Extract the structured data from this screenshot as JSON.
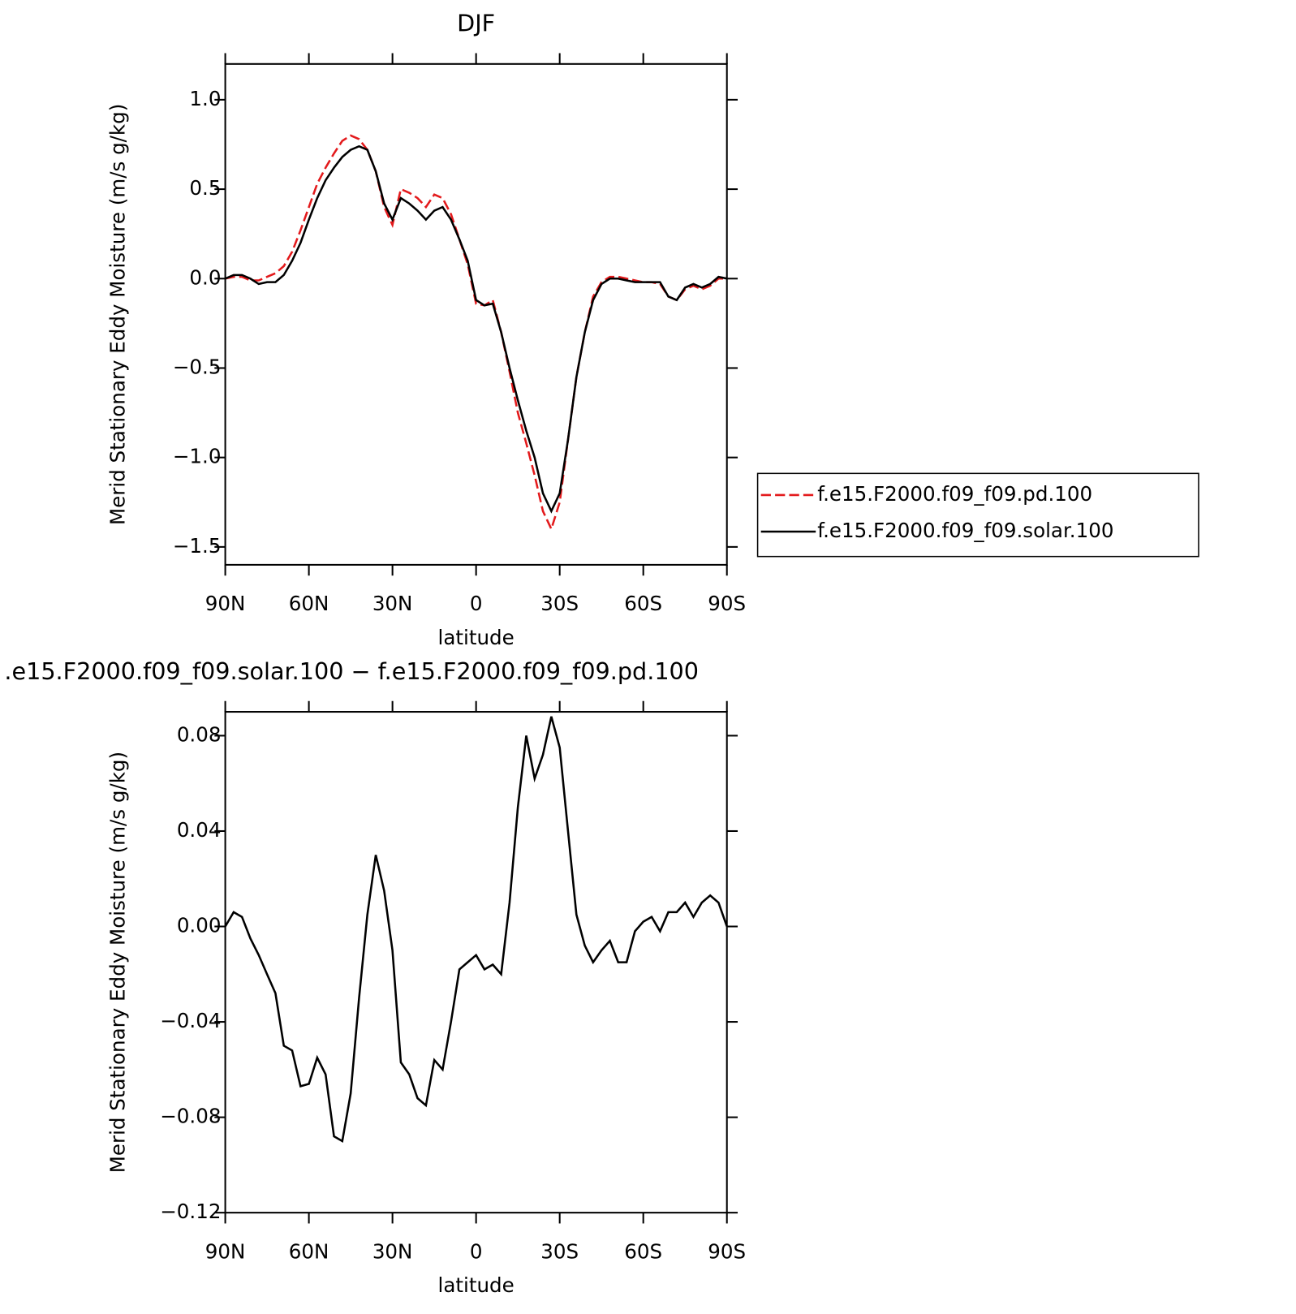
{
  "chart_data": [
    {
      "type": "line",
      "title": "DJF",
      "xlabel": "latitude",
      "ylabel": "Merid Stationary Eddy Moisture (m/s g/kg)",
      "x": [
        90,
        87,
        84,
        81,
        78,
        75,
        72,
        69,
        66,
        63,
        60,
        57,
        54,
        51,
        48,
        45,
        42,
        39,
        36,
        33,
        30,
        27,
        24,
        21,
        18,
        15,
        12,
        9,
        6,
        3,
        0,
        -3,
        -6,
        -9,
        -12,
        -15,
        -18,
        -21,
        -24,
        -27,
        -30,
        -33,
        -36,
        -39,
        -42,
        -45,
        -48,
        -51,
        -54,
        -57,
        -60,
        -63,
        -66,
        -69,
        -72,
        -75,
        -78,
        -81,
        -84,
        -87,
        -90
      ],
      "series": [
        {
          "name": "f.e15.F2000.f09_f09.pd.100",
          "color": "#e31a1c",
          "style": "dashed",
          "values": [
            0.0,
            0.01,
            0.01,
            -0.01,
            -0.01,
            0.01,
            0.03,
            0.07,
            0.15,
            0.27,
            0.4,
            0.53,
            0.62,
            0.7,
            0.77,
            0.8,
            0.78,
            0.72,
            0.6,
            0.4,
            0.3,
            0.5,
            0.48,
            0.45,
            0.4,
            0.47,
            0.45,
            0.36,
            0.22,
            0.08,
            -0.14,
            -0.15,
            -0.12,
            -0.3,
            -0.52,
            -0.75,
            -0.92,
            -1.1,
            -1.3,
            -1.4,
            -1.25,
            -0.9,
            -0.55,
            -0.3,
            -0.1,
            -0.02,
            0.01,
            0.01,
            0.0,
            -0.01,
            -0.02,
            -0.02,
            -0.03,
            -0.1,
            -0.12,
            -0.06,
            -0.04,
            -0.06,
            -0.04,
            0.0,
            0.0
          ]
        },
        {
          "name": "f.e15.F2000.f09_f09.solar.100",
          "color": "#000000",
          "style": "solid",
          "values": [
            0.0,
            0.02,
            0.02,
            0.0,
            -0.03,
            -0.02,
            -0.02,
            0.02,
            0.1,
            0.2,
            0.33,
            0.45,
            0.55,
            0.62,
            0.68,
            0.72,
            0.74,
            0.72,
            0.6,
            0.42,
            0.33,
            0.45,
            0.42,
            0.38,
            0.33,
            0.38,
            0.4,
            0.33,
            0.22,
            0.1,
            -0.12,
            -0.15,
            -0.14,
            -0.3,
            -0.5,
            -0.68,
            -0.85,
            -1.0,
            -1.2,
            -1.3,
            -1.2,
            -0.9,
            -0.55,
            -0.3,
            -0.12,
            -0.03,
            0.0,
            0.0,
            -0.01,
            -0.02,
            -0.02,
            -0.02,
            -0.02,
            -0.1,
            -0.12,
            -0.05,
            -0.03,
            -0.05,
            -0.03,
            0.01,
            0.0
          ]
        }
      ],
      "xlim": [
        90,
        -90
      ],
      "xticks": [
        {
          "value": 90,
          "label": "90N"
        },
        {
          "value": 60,
          "label": "60N"
        },
        {
          "value": 30,
          "label": "30N"
        },
        0,
        {
          "value": -30,
          "label": "30S"
        },
        {
          "value": -60,
          "label": "60S"
        },
        {
          "value": -90,
          "label": "90S"
        }
      ],
      "ylim": [
        -1.6,
        1.2
      ],
      "yticks": [
        {
          "value": -1.5,
          "label": "−1.5"
        },
        {
          "value": -1.0,
          "label": "−1.0"
        },
        {
          "value": -0.5,
          "label": "−0.5"
        },
        {
          "value": 0,
          "label": "0.0"
        },
        0.5,
        {
          "value": 1.0,
          "label": "1.0"
        }
      ],
      "legend": "right"
    },
    {
      "type": "line",
      "title": ".e15.F2000.f09_f09.solar.100 − f.e15.F2000.f09_f09.pd.100",
      "xlabel": "latitude",
      "ylabel": "Merid Stationary Eddy Moisture (m/s g/kg)",
      "x": [
        90,
        87,
        84,
        81,
        78,
        75,
        72,
        69,
        66,
        63,
        60,
        57,
        54,
        51,
        48,
        45,
        42,
        39,
        36,
        33,
        30,
        27,
        24,
        21,
        18,
        15,
        12,
        9,
        6,
        3,
        0,
        -3,
        -6,
        -9,
        -12,
        -15,
        -18,
        -21,
        -24,
        -27,
        -30,
        -33,
        -36,
        -39,
        -42,
        -45,
        -48,
        -51,
        -54,
        -57,
        -60,
        -63,
        -66,
        -69,
        -72,
        -75,
        -78,
        -81,
        -84,
        -87,
        -90
      ],
      "series": [
        {
          "color": "#000000",
          "style": "solid",
          "values": [
            0.0,
            0.006,
            0.004,
            -0.005,
            -0.012,
            -0.02,
            -0.028,
            -0.05,
            -0.052,
            -0.067,
            -0.066,
            -0.055,
            -0.062,
            -0.088,
            -0.09,
            -0.07,
            -0.03,
            0.005,
            0.03,
            0.015,
            -0.01,
            -0.057,
            -0.062,
            -0.072,
            -0.075,
            -0.056,
            -0.06,
            -0.04,
            -0.018,
            -0.015,
            -0.012,
            -0.018,
            -0.016,
            -0.02,
            0.01,
            0.05,
            0.08,
            0.062,
            0.072,
            0.088,
            0.075,
            0.04,
            0.005,
            -0.008,
            -0.015,
            -0.01,
            -0.006,
            -0.015,
            -0.015,
            -0.002,
            0.002,
            0.004,
            -0.002,
            0.006,
            0.006,
            0.01,
            0.004,
            0.01,
            0.013,
            0.01,
            0.0
          ]
        }
      ],
      "xlim": [
        90,
        -90
      ],
      "xticks": [
        {
          "value": 90,
          "label": "90N"
        },
        {
          "value": 60,
          "label": "60N"
        },
        {
          "value": 30,
          "label": "30N"
        },
        0,
        {
          "value": -30,
          "label": "30S"
        },
        {
          "value": -60,
          "label": "60S"
        },
        {
          "value": -90,
          "label": "90S"
        }
      ],
      "ylim": [
        -0.12,
        0.09
      ],
      "yticks": [
        {
          "value": -0.12,
          "label": "−0.12"
        },
        {
          "value": -0.08,
          "label": "−0.08"
        },
        {
          "value": -0.04,
          "label": "−0.04"
        },
        {
          "value": 0,
          "label": "0.00"
        },
        0.04,
        0.08
      ]
    }
  ]
}
